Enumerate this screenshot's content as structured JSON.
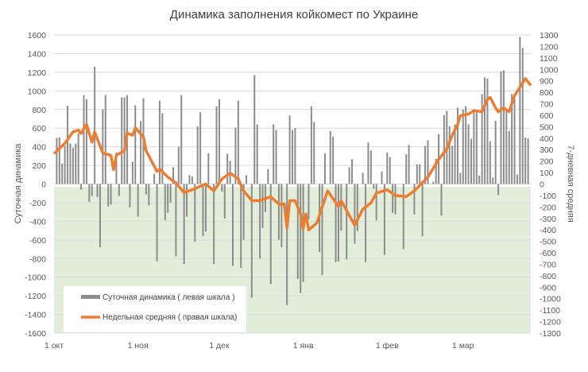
{
  "chart_data": {
    "type": "bar+line",
    "title": "Динамика заполнения койкомест по Украине",
    "ylabel_left": "Суточная динамика",
    "ylabel_right": "7-дневная средняя",
    "ylim_left": [
      -1600,
      1600
    ],
    "yticks_left": [
      "1600",
      "1400",
      "1200",
      "1000",
      "800",
      "600",
      "400",
      "200",
      "0",
      "-200",
      "-400",
      "-600",
      "-800",
      "-1000",
      "-1200",
      "-1400",
      "-1600"
    ],
    "ylim_right": [
      -1300,
      1300
    ],
    "yticks_right": [
      "1300",
      "1200",
      "1100",
      "1000",
      "900",
      "800",
      "700",
      "600",
      "500",
      "400",
      "300",
      "200",
      "100",
      "0",
      "-100",
      "-200",
      "-300",
      "-400",
      "-500",
      "-600",
      "-700",
      "-800",
      "-900",
      "-1000",
      "-1100",
      "-1200",
      "-1300"
    ],
    "xlim": [
      "01.10",
      "26.03"
    ],
    "xticks": [
      {
        "date": "01.10",
        "label": "1 окт"
      },
      {
        "date": "01.11",
        "label": "1 ноя"
      },
      {
        "date": "01.12",
        "label": "1 дек"
      },
      {
        "date": "01.01",
        "label": "1 янв"
      },
      {
        "date": "01.02",
        "label": "1 фев"
      },
      {
        "date": "01.03",
        "label": "1 мар"
      }
    ],
    "grid": true,
    "negative_region_fill": "#e2eed9",
    "legend_position": "bottom-left",
    "series": [
      {
        "name": "Суточная динамика ( левая шкала )",
        "type": "bar",
        "axis": "left",
        "color": "#8c8c8c",
        "points": [
          [
            "02.10",
            495
          ],
          [
            "03.10",
            500
          ],
          [
            "04.10",
            220
          ],
          [
            "05.10",
            410
          ],
          [
            "06.10",
            840
          ],
          [
            "07.10",
            435
          ],
          [
            "08.10",
            390
          ],
          [
            "09.10",
            435
          ],
          [
            "10.10",
            545
          ],
          [
            "11.10",
            -60
          ],
          [
            "12.10",
            955
          ],
          [
            "13.10",
            910
          ],
          [
            "14.10",
            -190
          ],
          [
            "15.10",
            -130
          ],
          [
            "16.10",
            1260
          ],
          [
            "17.10",
            -140
          ],
          [
            "18.10",
            -680
          ],
          [
            "19.10",
            800
          ],
          [
            "20.10",
            955
          ],
          [
            "21.10",
            -240
          ],
          [
            "22.10",
            -220
          ],
          [
            "24.10",
            340
          ],
          [
            "25.10",
            -130
          ],
          [
            "26.10",
            930
          ],
          [
            "27.10",
            930
          ],
          [
            "28.10",
            955
          ],
          [
            "29.10",
            -250
          ],
          [
            "30.10",
            240
          ],
          [
            "31.10",
            845
          ],
          [
            "01.11",
            -350
          ],
          [
            "02.11",
            675
          ],
          [
            "03.11",
            920
          ],
          [
            "04.11",
            -110
          ],
          [
            "05.11",
            -230
          ],
          [
            "07.11",
            110
          ],
          [
            "08.11",
            -830
          ],
          [
            "09.11",
            895
          ],
          [
            "10.11",
            760
          ],
          [
            "11.11",
            -390
          ],
          [
            "12.11",
            -310
          ],
          [
            "13.11",
            -200
          ],
          [
            "14.11",
            180
          ],
          [
            "15.11",
            -775
          ],
          [
            "16.11",
            400
          ],
          [
            "17.11",
            955
          ],
          [
            "18.11",
            -860
          ],
          [
            "19.11",
            -350
          ],
          [
            "20.11",
            95
          ],
          [
            "21.11",
            80
          ],
          [
            "22.11",
            -620
          ],
          [
            "23.11",
            620
          ],
          [
            "24.11",
            770
          ],
          [
            "25.11",
            -560
          ],
          [
            "26.11",
            -510
          ],
          [
            "27.11",
            330
          ],
          [
            "29.11",
            -860
          ],
          [
            "30.11",
            835
          ],
          [
            "01.12",
            910
          ],
          [
            "02.12",
            -80
          ],
          [
            "03.12",
            -370
          ],
          [
            "04.12",
            325
          ],
          [
            "05.12",
            250
          ],
          [
            "06.12",
            -880
          ],
          [
            "07.12",
            605
          ],
          [
            "08.12",
            895
          ],
          [
            "09.12",
            -900
          ],
          [
            "10.12",
            -600
          ],
          [
            "11.12",
            95
          ],
          [
            "13.12",
            -1220
          ],
          [
            "14.12",
            1170
          ],
          [
            "15.12",
            640
          ],
          [
            "16.12",
            -800
          ],
          [
            "17.12",
            -470
          ],
          [
            "18.12",
            -300
          ],
          [
            "19.12",
            160
          ],
          [
            "20.12",
            -1075
          ],
          [
            "21.12",
            640
          ],
          [
            "22.12",
            580
          ],
          [
            "23.12",
            -600
          ],
          [
            "24.12",
            -680
          ],
          [
            "26.12",
            -1300
          ],
          [
            "27.12",
            735
          ],
          [
            "28.12",
            580
          ],
          [
            "29.12",
            600
          ],
          [
            "30.12",
            -1020
          ],
          [
            "31.12",
            -1170
          ],
          [
            "01.01",
            -1050
          ],
          [
            "03.01",
            -380
          ],
          [
            "04.01",
            835
          ],
          [
            "05.01",
            665
          ],
          [
            "07.01",
            -730
          ],
          [
            "08.01",
            -980
          ],
          [
            "09.01",
            330
          ],
          [
            "11.01",
            570
          ],
          [
            "12.01",
            510
          ],
          [
            "13.01",
            -840
          ],
          [
            "14.01",
            -830
          ],
          [
            "15.01",
            -500
          ],
          [
            "17.01",
            -810
          ],
          [
            "18.01",
            180
          ],
          [
            "19.01",
            265
          ],
          [
            "20.01",
            -640
          ],
          [
            "21.01",
            -505
          ],
          [
            "23.01",
            120
          ],
          [
            "24.01",
            -840
          ],
          [
            "25.01",
            445
          ],
          [
            "26.01",
            360
          ],
          [
            "27.01",
            -50
          ],
          [
            "28.01",
            -390
          ],
          [
            "30.01",
            135
          ],
          [
            "31.01",
            -760
          ],
          [
            "01.02",
            340
          ],
          [
            "02.02",
            290
          ],
          [
            "03.02",
            -310
          ],
          [
            "04.02",
            -325
          ],
          [
            "07.02",
            -700
          ],
          [
            "08.02",
            320
          ],
          [
            "09.02",
            420
          ],
          [
            "11.02",
            -325
          ],
          [
            "12.02",
            210
          ],
          [
            "13.02",
            210
          ],
          [
            "14.02",
            -560
          ],
          [
            "15.02",
            410
          ],
          [
            "16.02",
            470
          ],
          [
            "18.02",
            25
          ],
          [
            "19.02",
            270
          ],
          [
            "20.02",
            535
          ],
          [
            "21.02",
            -340
          ],
          [
            "22.02",
            740
          ],
          [
            "23.02",
            785
          ],
          [
            "24.02",
            620
          ],
          [
            "25.02",
            410
          ],
          [
            "26.02",
            640
          ],
          [
            "27.02",
            820
          ],
          [
            "28.02",
            120
          ],
          [
            "01.03",
            800
          ],
          [
            "02.03",
            835
          ],
          [
            "03.03",
            640
          ],
          [
            "04.03",
            485
          ],
          [
            "05.03",
            770
          ],
          [
            "06.03",
            770
          ],
          [
            "07.03",
            90
          ],
          [
            "08.03",
            965
          ],
          [
            "09.03",
            1145
          ],
          [
            "10.03",
            1130
          ],
          [
            "11.03",
            460
          ],
          [
            "12.03",
            70
          ],
          [
            "13.03",
            680
          ],
          [
            "14.03",
            -120
          ],
          [
            "15.03",
            1210
          ],
          [
            "16.03",
            1220
          ],
          [
            "17.03",
            800
          ],
          [
            "18.03",
            570
          ],
          [
            "19.03",
            965
          ],
          [
            "20.03",
            915
          ],
          [
            "21.03",
            100
          ],
          [
            "22.03",
            1580
          ],
          [
            "23.03",
            1460
          ],
          [
            "24.03",
            500
          ],
          [
            "25.03",
            490
          ]
        ]
      },
      {
        "name": "Недельная средняя ( правая шкала)",
        "type": "line",
        "axis": "right",
        "color": "#ed7d31",
        "points": [
          [
            "01.10",
            265
          ],
          [
            "05.10",
            355
          ],
          [
            "08.10",
            455
          ],
          [
            "10.10",
            470
          ],
          [
            "11.10",
            440
          ],
          [
            "13.10",
            520
          ],
          [
            "15.10",
            365
          ],
          [
            "16.10",
            455
          ],
          [
            "19.10",
            270
          ],
          [
            "22.10",
            250
          ],
          [
            "23.10",
            125
          ],
          [
            "24.10",
            250
          ],
          [
            "27.10",
            290
          ],
          [
            "28.10",
            445
          ],
          [
            "30.10",
            425
          ],
          [
            "31.10",
            490
          ],
          [
            "03.11",
            410
          ],
          [
            "04.11",
            290
          ],
          [
            "08.11",
            110
          ],
          [
            "09.11",
            130
          ],
          [
            "12.11",
            60
          ],
          [
            "15.11",
            10
          ],
          [
            "18.11",
            -75
          ],
          [
            "21.11",
            -50
          ],
          [
            "24.11",
            -20
          ],
          [
            "26.11",
            0
          ],
          [
            "29.11",
            -60
          ],
          [
            "02.12",
            45
          ],
          [
            "05.12",
            95
          ],
          [
            "08.12",
            45
          ],
          [
            "10.12",
            -60
          ],
          [
            "13.12",
            -145
          ],
          [
            "16.12",
            -145
          ],
          [
            "20.12",
            -110
          ],
          [
            "23.12",
            -175
          ],
          [
            "25.12",
            -175
          ],
          [
            "26.12",
            -385
          ],
          [
            "27.12",
            -145
          ],
          [
            "29.12",
            -145
          ],
          [
            "31.12",
            -260
          ],
          [
            "01.01",
            -390
          ],
          [
            "02.01",
            -260
          ],
          [
            "03.01",
            -400
          ],
          [
            "06.01",
            -340
          ],
          [
            "10.01",
            -60
          ],
          [
            "14.01",
            -195
          ],
          [
            "15.01",
            -145
          ],
          [
            "20.01",
            -360
          ],
          [
            "23.01",
            -220
          ],
          [
            "26.01",
            -165
          ],
          [
            "28.01",
            -80
          ],
          [
            "01.02",
            -50
          ],
          [
            "04.02",
            -100
          ],
          [
            "08.02",
            -110
          ],
          [
            "11.02",
            -60
          ],
          [
            "16.02",
            60
          ],
          [
            "20.02",
            215
          ],
          [
            "23.02",
            305
          ],
          [
            "25.02",
            425
          ],
          [
            "27.02",
            520
          ],
          [
            "28.02",
            595
          ],
          [
            "03.03",
            610
          ],
          [
            "05.03",
            640
          ],
          [
            "08.03",
            630
          ],
          [
            "10.03",
            740
          ],
          [
            "11.03",
            755
          ],
          [
            "13.03",
            665
          ],
          [
            "14.03",
            630
          ],
          [
            "16.03",
            665
          ],
          [
            "18.03",
            630
          ],
          [
            "20.03",
            770
          ],
          [
            "22.03",
            845
          ],
          [
            "24.03",
            920
          ],
          [
            "26.03",
            860
          ]
        ]
      }
    ]
  }
}
